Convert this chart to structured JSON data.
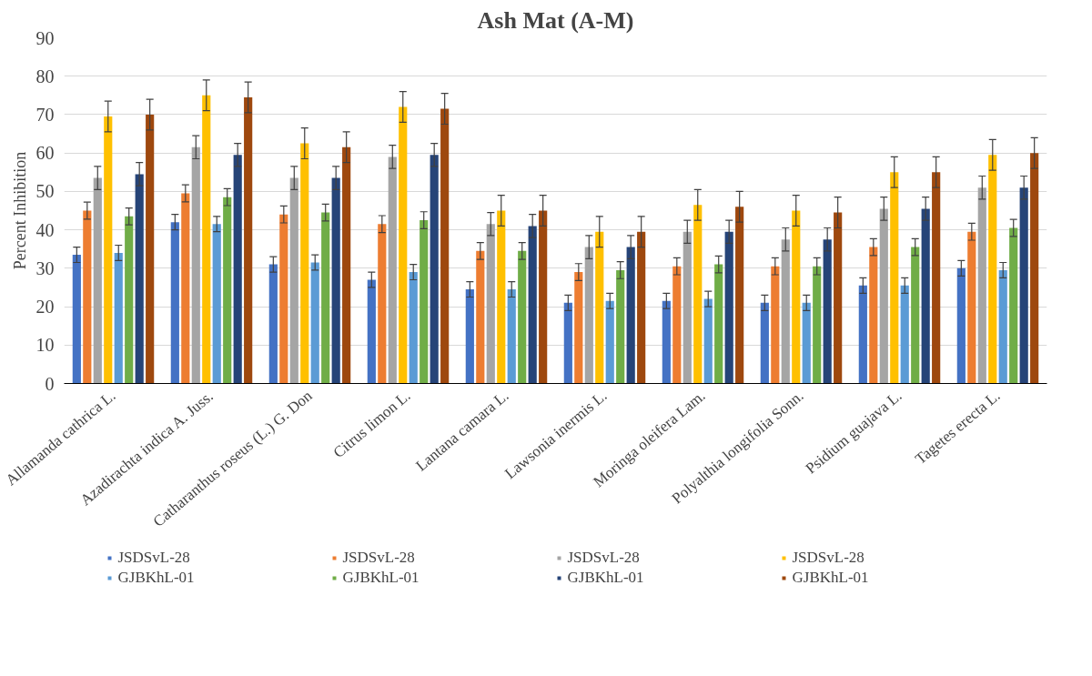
{
  "chart_data": {
    "type": "bar",
    "title": "Ash Mat (A-M)",
    "ylabel": "Percent Inhibition",
    "categories": [
      "Allamanda cathrica L.",
      "Azadirachta indica A. Juss.",
      "Catharanthus roseus (L.) G. Don",
      "Citrus limon L.",
      "Lantana camara L.",
      "Lawsonia inermis L.",
      "Moringa oleifera Lam.",
      "Polyalthia longifolia Sonn.",
      "Psidium guajava L.",
      "Tagetes erecta L."
    ],
    "series": [
      {
        "name": "JSDSvL-28",
        "color": "#4472c4",
        "values": [
          33.5,
          42,
          31,
          27,
          24.5,
          21,
          21.5,
          21,
          25.5,
          30
        ],
        "errors": [
          2,
          2,
          2,
          2,
          2,
          2,
          2,
          2,
          2,
          2
        ]
      },
      {
        "name": "JSDSvL-28",
        "color": "#ed7d31",
        "values": [
          45,
          49.5,
          44,
          41.5,
          34.5,
          29,
          30.5,
          30.5,
          35.5,
          39.5
        ],
        "errors": [
          2.2,
          2.2,
          2.2,
          2.2,
          2.2,
          2.2,
          2.2,
          2.2,
          2.2,
          2.2
        ]
      },
      {
        "name": "JSDSvL-28",
        "color": "#a5a5a5",
        "values": [
          53.5,
          61.5,
          53.5,
          59,
          41.5,
          35.5,
          39.5,
          37.5,
          45.5,
          51
        ],
        "errors": [
          3,
          3,
          3,
          3,
          3,
          3,
          3,
          3,
          3,
          3
        ]
      },
      {
        "name": "JSDSvL-28",
        "color": "#ffc000",
        "values": [
          69.5,
          75,
          62.5,
          72,
          45,
          39.5,
          46.5,
          45,
          55,
          59.5
        ],
        "errors": [
          4,
          4,
          4,
          4,
          4,
          4,
          4,
          4,
          4,
          4
        ]
      },
      {
        "name": "GJBKhL-01",
        "color": "#5b9bd5",
        "values": [
          34,
          41.5,
          31.5,
          29,
          24.5,
          21.5,
          22,
          21,
          25.5,
          29.5
        ],
        "errors": [
          2,
          2,
          2,
          2,
          2,
          2,
          2,
          2,
          2,
          2
        ]
      },
      {
        "name": "GJBKhL-01",
        "color": "#70ad47",
        "values": [
          43.5,
          48.5,
          44.5,
          42.5,
          34.5,
          29.5,
          31,
          30.5,
          35.5,
          40.5
        ],
        "errors": [
          2.2,
          2.2,
          2.2,
          2.2,
          2.2,
          2.2,
          2.2,
          2.2,
          2.2,
          2.2
        ]
      },
      {
        "name": "GJBKhL-01",
        "color": "#264478",
        "values": [
          54.5,
          59.5,
          53.5,
          59.5,
          41,
          35.5,
          39.5,
          37.5,
          45.5,
          51
        ],
        "errors": [
          3,
          3,
          3,
          3,
          3,
          3,
          3,
          3,
          3,
          3
        ]
      },
      {
        "name": "GJBKhL-01",
        "color": "#9e480e",
        "values": [
          70,
          74.5,
          61.5,
          71.5,
          45,
          39.5,
          46,
          44.5,
          55,
          60
        ],
        "errors": [
          4,
          4,
          4,
          4,
          4,
          4,
          4,
          4,
          4,
          4
        ]
      }
    ],
    "ylim": [
      0,
      90
    ],
    "yticks": [
      0,
      10,
      20,
      30,
      40,
      50,
      60,
      70,
      80,
      90
    ],
    "grid": "y",
    "legend": "bottom"
  }
}
